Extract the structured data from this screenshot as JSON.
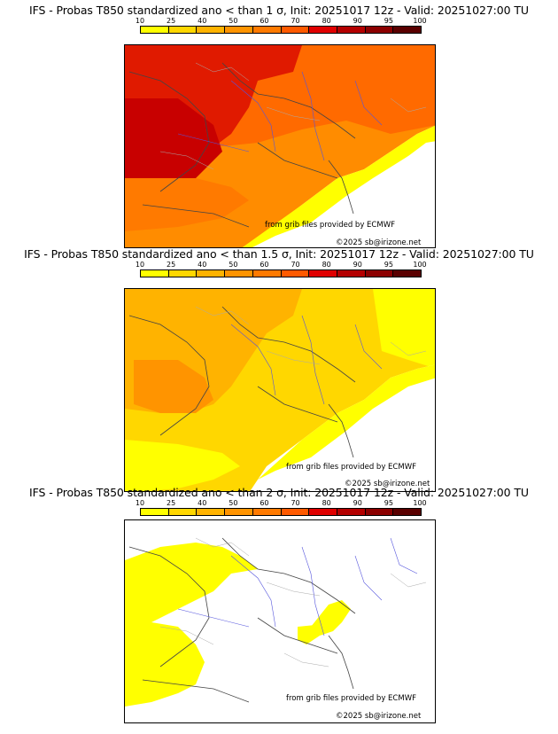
{
  "colorbar": {
    "ticks": [
      "10",
      "25",
      "40",
      "50",
      "60",
      "70",
      "80",
      "90",
      "95",
      "100"
    ],
    "colors": [
      "#ffff00",
      "#ffd700",
      "#ffb300",
      "#ff9400",
      "#ff7a00",
      "#ff5a00",
      "#e00000",
      "#b40000",
      "#8c0000",
      "#5a0000"
    ]
  },
  "panels": [
    {
      "title": "IFS - Probas T850  standardized ano < than 1 σ, Init: 20251017 12z - Valid: 20251027:00 TU",
      "source_credit": "from grib files provided by ECMWF",
      "copyright": "©2025 sb@irizone.net"
    },
    {
      "title": "IFS - Probas T850  standardized ano < than 1.5 σ, Init: 20251017 12z - Valid: 20251027:00 TU",
      "source_credit": "from grib files provided by ECMWF",
      "copyright": "©2025 sb@irizone.net"
    },
    {
      "title": "IFS - Probas T850  standardized ano < than 2 σ, Init: 20251017 12z - Valid: 20251027:00 TU",
      "source_credit": "from grib files provided by ECMWF",
      "copyright": "©2025 sb@irizone.net"
    }
  ]
}
